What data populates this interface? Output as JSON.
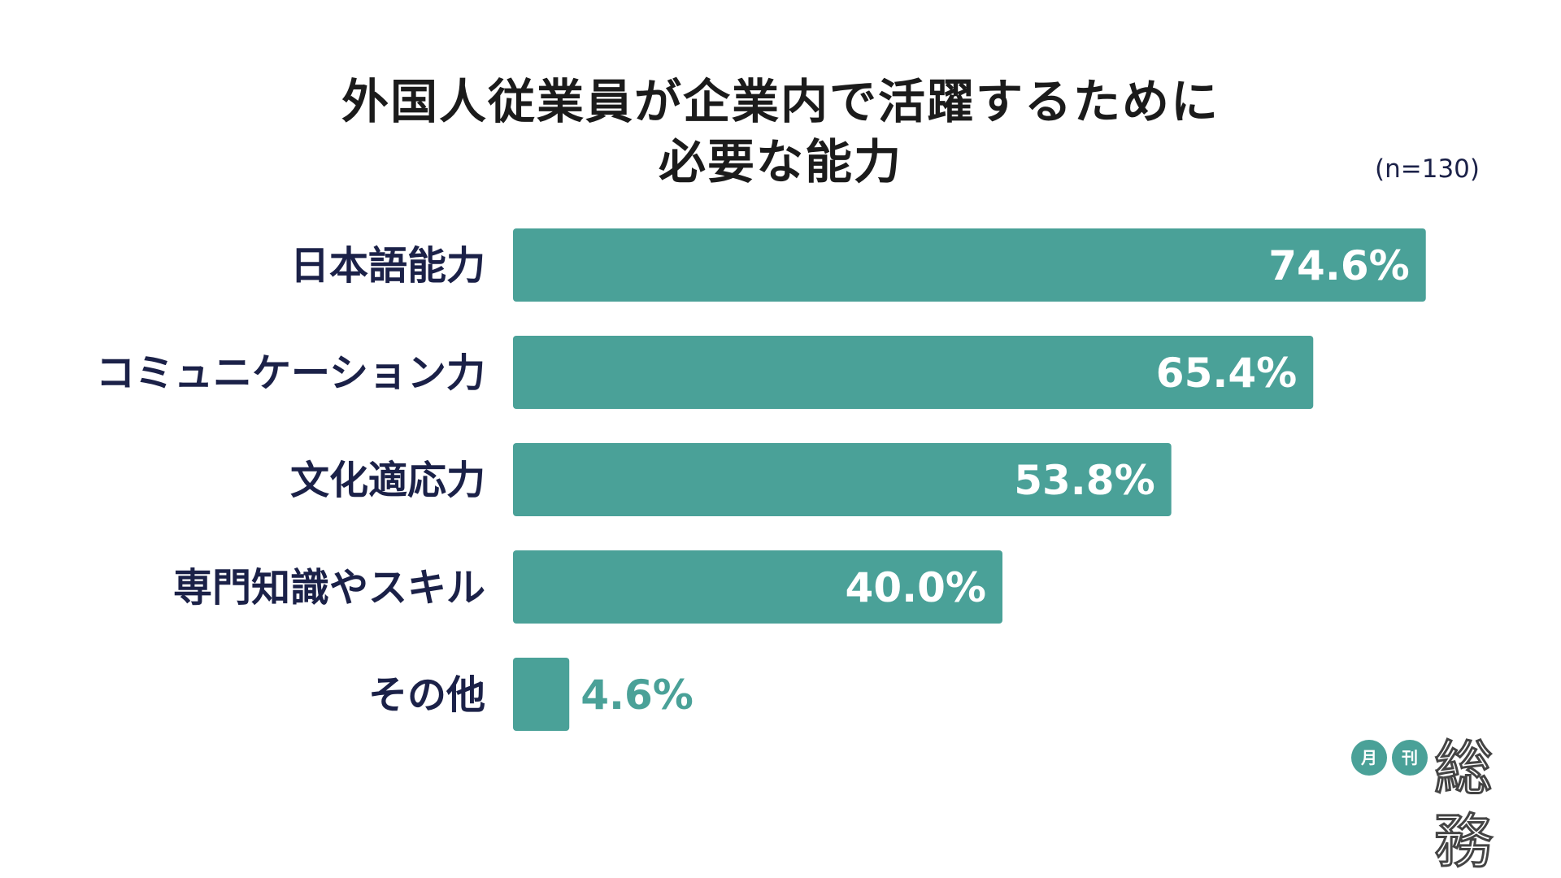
{
  "chart_data": {
    "type": "bar",
    "orientation": "horizontal",
    "title": "外国人従業員が企業内で活躍するために必要な能力",
    "title_lines": [
      "外国人従業員が企業内で活躍するために",
      "必要な能力"
    ],
    "sample_size": "(n=130)",
    "categories": [
      "日本語能力",
      "コミュニケーション力",
      "文化適応力",
      "専門知識やスキル",
      "その他"
    ],
    "values": [
      74.6,
      65.4,
      53.8,
      40.0,
      4.6
    ],
    "value_labels": [
      "74.6%",
      "65.4%",
      "53.8%",
      "40.0%",
      "4.6%"
    ],
    "unit": "%",
    "xlim": [
      0,
      100
    ],
    "grid": false,
    "legend": "none",
    "bar_color": "#4aa198"
  },
  "logo": {
    "mark_1": "月",
    "mark_2": "刊",
    "name": "総務"
  },
  "colors": {
    "accent": "#4aa198",
    "label_text": "#1b2148",
    "title_text": "#1b1b1b"
  }
}
